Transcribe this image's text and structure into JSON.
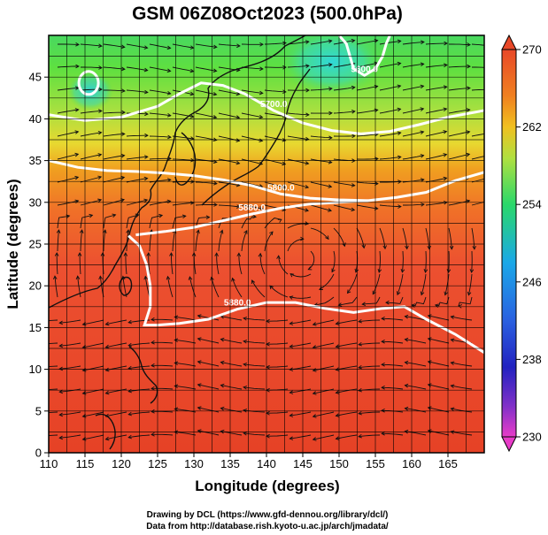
{
  "title": "GSM 06Z08Oct2023 (500.0hPa)",
  "xlabel": "Longitude (degrees)",
  "ylabel": "Latitude  (degrees)",
  "credits": [
    "Drawing by DCL (https://www.gfd-dennou.org/library/dcl/)",
    "Data from http://database.rish.kyoto-u.ac.jp/arch/jmadata/"
  ],
  "chart_data": {
    "type": "heatmap",
    "title": "GSM 06Z08Oct2023 (500.0hPa)",
    "xlabel": "Longitude (degrees)",
    "ylabel": "Latitude  (degrees)",
    "xlim": [
      110,
      170
    ],
    "ylim": [
      0,
      50
    ],
    "x_ticks": [
      "110",
      "115",
      "120",
      "125",
      "130",
      "135",
      "140",
      "145",
      "150",
      "155",
      "160",
      "165"
    ],
    "y_ticks": [
      "0",
      "5",
      "10",
      "15",
      "20",
      "25",
      "30",
      "35",
      "40",
      "45"
    ],
    "grid": true,
    "colorbar": {
      "ticks": [
        "230",
        "238",
        "246",
        "254",
        "262",
        "270"
      ],
      "range": [
        230,
        270
      ],
      "colors": [
        "#e83cc8",
        "#2222c0",
        "#1aa8e8",
        "#2ad86a",
        "#f0c020",
        "#e84828"
      ]
    },
    "contours": [
      {
        "label": "5700.0",
        "points": [
          [
            110,
            40.5
          ],
          [
            115,
            39.8
          ],
          [
            120,
            40.2
          ],
          [
            125,
            41.5
          ],
          [
            128,
            43
          ],
          [
            131,
            44.3
          ],
          [
            134,
            44
          ],
          [
            137,
            43
          ],
          [
            141,
            41
          ],
          [
            145,
            39.5
          ],
          [
            149,
            38.6
          ],
          [
            153,
            38.2
          ],
          [
            157,
            38.5
          ],
          [
            161,
            39.3
          ],
          [
            165,
            40.2
          ],
          [
            170,
            41
          ]
        ]
      },
      {
        "label": "5800.0",
        "points": [
          [
            110,
            35
          ],
          [
            114,
            34.2
          ],
          [
            118,
            33.8
          ],
          [
            122,
            33.7
          ],
          [
            126,
            33.5
          ],
          [
            130,
            33.2
          ],
          [
            134,
            32.7
          ],
          [
            138,
            32
          ],
          [
            142,
            31
          ],
          [
            146,
            30.5
          ],
          [
            150,
            30.3
          ],
          [
            154,
            30.2
          ],
          [
            158,
            30.6
          ],
          [
            162,
            31.2
          ],
          [
            166,
            32.6
          ],
          [
            170,
            33.6
          ]
        ]
      },
      {
        "label": "5880.0",
        "points": [
          [
            121,
            26
          ],
          [
            122.5,
            24.8
          ],
          [
            123.5,
            22.5
          ],
          [
            124,
            20
          ],
          [
            124,
            17.5
          ],
          [
            123.2,
            15.3
          ],
          [
            125,
            15.3
          ],
          [
            128,
            15.5
          ],
          [
            132,
            16
          ],
          [
            136,
            17.2
          ],
          [
            140,
            18
          ],
          [
            144,
            18
          ],
          [
            148,
            17.3
          ],
          [
            152,
            16.8
          ],
          [
            156,
            17.3
          ],
          [
            159,
            17.5
          ],
          [
            162,
            16
          ],
          [
            166,
            14.2
          ],
          [
            170,
            12
          ]
        ]
      },
      {
        "label": "5880.0",
        "points": [
          [
            122,
            26.1
          ],
          [
            126,
            26.5
          ],
          [
            130,
            27
          ],
          [
            134,
            27.8
          ],
          [
            138,
            28.6
          ],
          [
            142,
            29.3
          ],
          [
            146,
            29.8
          ],
          [
            150,
            30
          ],
          [
            154,
            30.2
          ]
        ]
      },
      {
        "label": "5600.0",
        "points": [
          [
            150,
            50
          ],
          [
            151,
            49
          ],
          [
            151.5,
            47.5
          ],
          [
            152,
            46
          ],
          [
            153.5,
            45.2
          ],
          [
            155,
            46
          ],
          [
            156,
            47.5
          ],
          [
            156.5,
            49
          ],
          [
            157,
            50
          ]
        ]
      }
    ],
    "low_centers": [
      [
        115.5,
        44.3
      ]
    ]
  }
}
